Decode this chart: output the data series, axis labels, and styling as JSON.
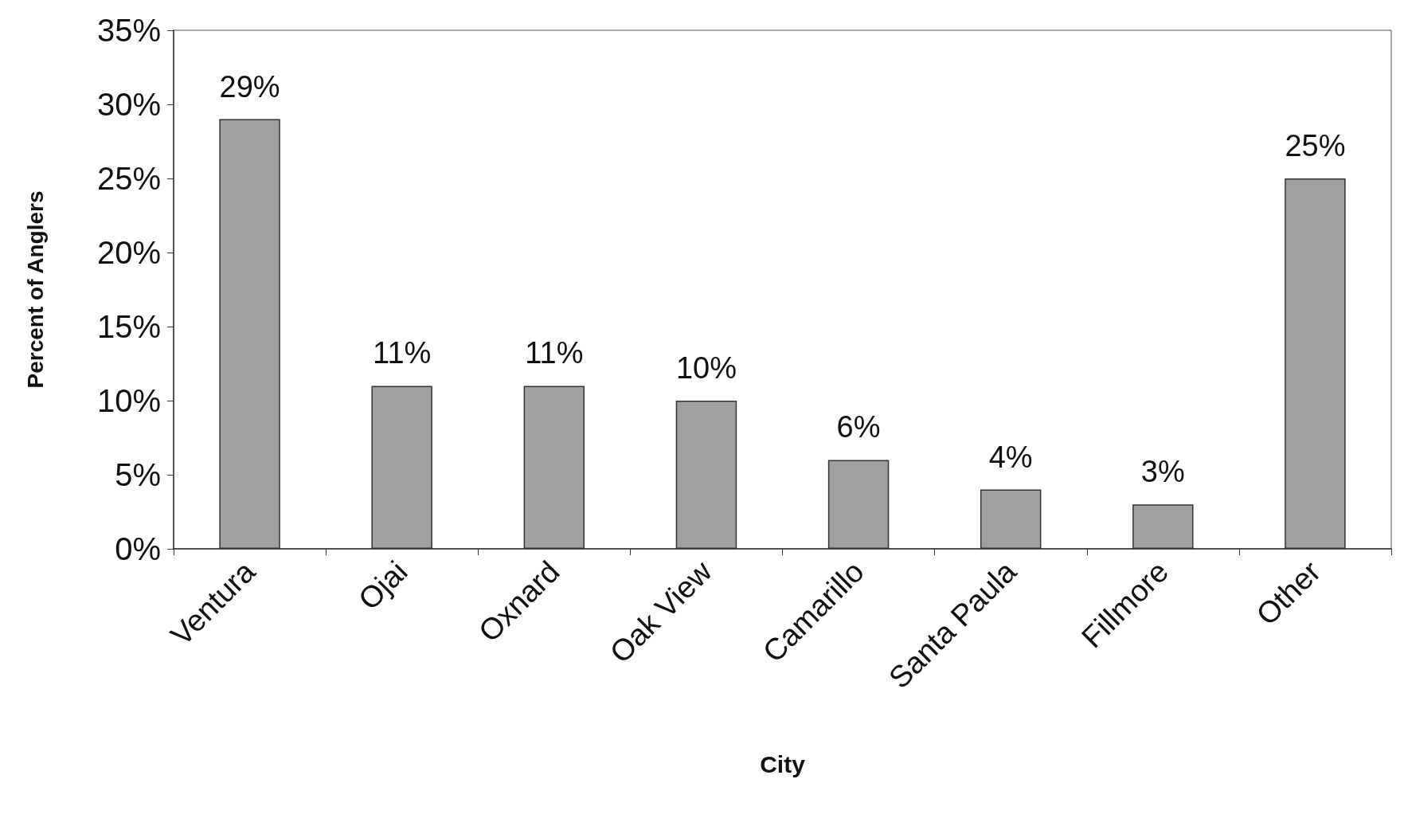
{
  "chart_data": {
    "type": "bar",
    "xlabel": "City",
    "ylabel": "Percent of Anglers",
    "categories": [
      "Ventura",
      "Ojai",
      "Oxnard",
      "Oak View",
      "Camarillo",
      "Santa Paula",
      "Fillmore",
      "Other"
    ],
    "values": [
      29,
      11,
      11,
      10,
      6,
      4,
      3,
      25
    ],
    "value_labels": [
      "29%",
      "11%",
      "11%",
      "10%",
      "6%",
      "4%",
      "3%",
      "25%"
    ],
    "color": "#a0a0a0",
    "ylim": [
      0,
      35
    ],
    "yticks": [
      {
        "value": 0,
        "label": "0%"
      },
      {
        "value": 5,
        "label": "5%"
      },
      {
        "value": 10,
        "label": "10%"
      },
      {
        "value": 15,
        "label": "15%"
      },
      {
        "value": 20,
        "label": "20%"
      },
      {
        "value": 25,
        "label": "25%"
      },
      {
        "value": 30,
        "label": "30%"
      },
      {
        "value": 35,
        "label": "35%"
      }
    ],
    "grid": false
  }
}
